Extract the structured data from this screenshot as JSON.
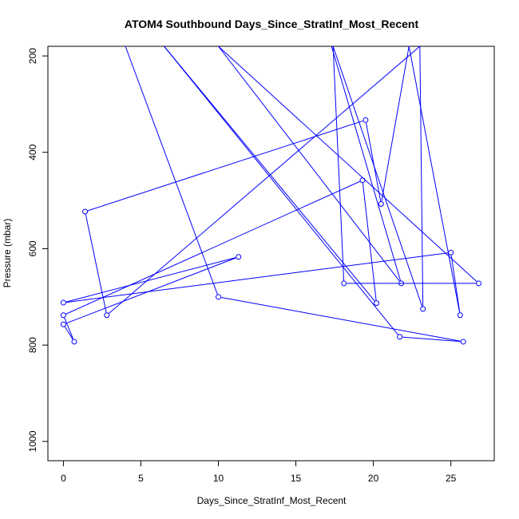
{
  "chart_data": {
    "type": "line",
    "title": "ATOM4 Southbound Days_Since_StratInf_Most_Recent",
    "xlabel": "Days_Since_StratInf_Most_Recent",
    "ylabel": "Pressure (mbar)",
    "xlim": [
      -1,
      27.8
    ],
    "ylim": [
      1040,
      180
    ],
    "y_reversed": true,
    "xticks": [
      0,
      5,
      10,
      15,
      20,
      25
    ],
    "yticks": [
      200,
      400,
      600,
      800,
      1000
    ],
    "grid": false,
    "series_color": "#0000ff",
    "series": [
      {
        "markers": "open-circle",
        "points": [
          [
            4.0,
            180
          ],
          [
            10.0,
            700
          ],
          [
            25.8,
            793
          ],
          [
            21.7,
            783
          ],
          [
            6.5,
            180
          ],
          [
            20.2,
            713
          ],
          [
            19.3,
            458
          ],
          [
            0.0,
            738
          ],
          [
            0.7,
            793
          ],
          [
            0.0,
            757
          ],
          [
            11.3,
            617
          ],
          [
            0.0,
            712
          ],
          [
            25.0,
            608
          ],
          [
            25.6,
            738
          ],
          [
            22.3,
            180
          ],
          [
            20.5,
            507
          ],
          [
            19.5,
            333
          ],
          [
            1.4,
            523
          ],
          [
            2.8,
            738
          ],
          [
            23.0,
            180
          ],
          [
            23.2,
            725
          ],
          [
            17.4,
            180
          ],
          [
            18.1,
            672
          ],
          [
            26.8,
            672
          ],
          [
            10.0,
            180
          ],
          [
            21.8,
            672
          ],
          [
            17.3,
            180
          ]
        ]
      }
    ]
  }
}
